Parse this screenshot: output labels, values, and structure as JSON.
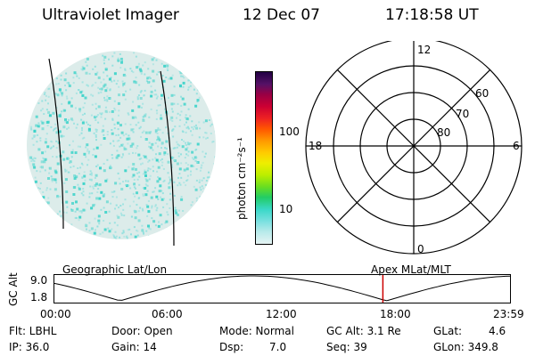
{
  "header": {
    "title": "Ultraviolet Imager",
    "date": "12 Dec 07",
    "time": "17:18:58 UT"
  },
  "colorbar": {
    "label": "photon cm⁻²s⁻¹",
    "ticks": [
      "100",
      "10"
    ],
    "colors": [
      "#e6f4f4",
      "#b8eaea",
      "#7be0e0",
      "#3ad8c8",
      "#22cc66",
      "#66dd22",
      "#bbee00",
      "#eeee00",
      "#ffcc00",
      "#ff9900",
      "#ff5500",
      "#ee2222",
      "#cc0033",
      "#990044",
      "#551166",
      "#220044"
    ]
  },
  "polar": {
    "hour_labels": [
      "12",
      "18",
      "6",
      "0"
    ],
    "lat_labels": [
      "60",
      "70",
      "80"
    ]
  },
  "timeline": {
    "left_title": "Geographic Lat/Lon",
    "right_title": "Apex MLat/MLT",
    "axis_label": "GC Alt",
    "y_max": "9.0",
    "y_min": "1.8",
    "x_ticks": [
      "00:00",
      "06:00",
      "12:00",
      "18:00",
      "23:59"
    ],
    "marker_time": "17:18:58",
    "marker_color": "#cc0000"
  },
  "status": {
    "filter": "Flt: LBHL",
    "ip": "IP: 36.0",
    "door": "Door: Open",
    "gain": "Gain: 14",
    "mode": "Mode: Normal",
    "dsp": "Dsp:",
    "dsp_value": "7.0",
    "gc_alt": "GC Alt: 3.1 Re",
    "seq": "Seq: 39",
    "glat": "GLat:",
    "glat_value": "4.6",
    "glon": "GLon: 349.8"
  },
  "colors": {
    "image_base": "#dcecea",
    "image_speckle": "#8ee0de",
    "image_bright": "#36d2c8",
    "foreground": "#000000"
  }
}
